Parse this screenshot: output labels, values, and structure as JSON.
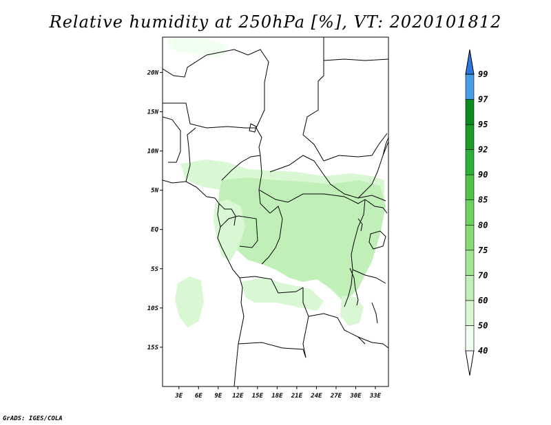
{
  "title": "Relative humidity at 250hPa [%], VT: 2020101812",
  "credit": "GrADS: IGES/COLA",
  "map": {
    "lon_labels": [
      "3E",
      "6E",
      "9E",
      "12E",
      "15E",
      "18E",
      "21E",
      "24E",
      "27E",
      "30E",
      "33E"
    ],
    "lat_labels": [
      "20N",
      "15N",
      "10N",
      "5N",
      "EQ",
      "5S",
      "10S",
      "15S"
    ]
  },
  "colorbar": {
    "levels": [
      "40",
      "50",
      "60",
      "70",
      "75",
      "80",
      "85",
      "90",
      "92",
      "95",
      "97",
      "99"
    ],
    "colors": [
      "#f0fff0",
      "#d9f7d3",
      "#c1efb8",
      "#a3e696",
      "#87dc78",
      "#6ed261",
      "#52c44a",
      "#2fb03a",
      "#1e9a2a",
      "#0f8a1e",
      "#4a9ee8",
      "#2a78e0",
      "#1a5cc8"
    ]
  },
  "humidity_regions": [
    {
      "name": "north-band-west",
      "level": "50"
    },
    {
      "name": "central-core",
      "level": "60"
    },
    {
      "name": "southwest-patch",
      "level": "50"
    },
    {
      "name": "south-patch",
      "level": "50"
    }
  ]
}
